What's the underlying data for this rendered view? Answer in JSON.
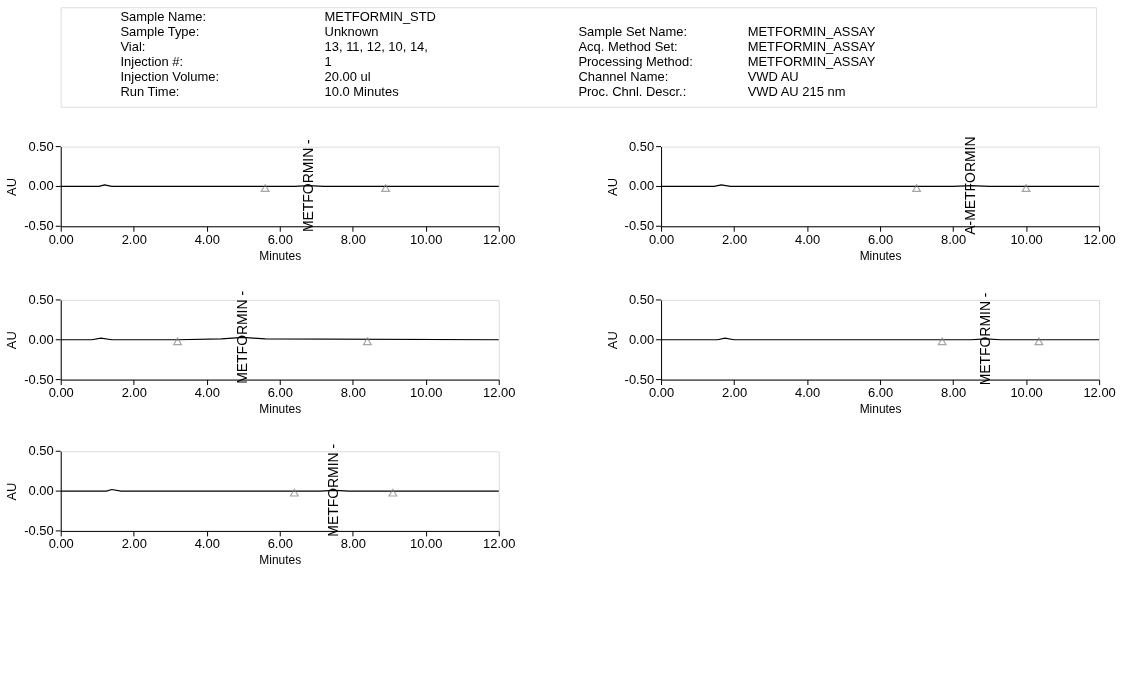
{
  "chart_data": [
    {
      "type": "other",
      "annotations": [
        "Sample Name:",
        "METFORMIN_STD",
        "Sample Type:",
        "Unknown",
        "Vial:",
        "13, 11, 12, 10, 14,",
        "Injection #:",
        "1",
        "Injection Volume:",
        "20.00 ul",
        "Run Time:",
        "10.0 Minutes",
        "Sample Set Name:",
        "METFORMIN_ASSAY",
        "Acq. Method Set:",
        "METFORMIN_ASSAY",
        "Processing Method:",
        "METFORMIN_ASSAY",
        "Channel Name:",
        "VWD AU",
        "Proc. Chnl. Descr.:",
        "VWD AU 215 nm"
      ]
    },
    {
      "type": "line",
      "xlabel": "Minutes",
      "ylabel": "AU",
      "xlim": [
        0,
        12
      ],
      "ylim": [
        -0.5,
        0.5
      ],
      "xticks": [
        {
          "value": 0,
          "label": "0.00"
        },
        {
          "value": 2,
          "label": "2.00"
        },
        {
          "value": 4,
          "label": "4.00"
        },
        {
          "value": 6,
          "label": "6.00"
        },
        {
          "value": 8,
          "label": "8.00"
        },
        {
          "value": 10,
          "label": "10.00"
        },
        {
          "value": 12,
          "label": "12.00"
        }
      ],
      "yticks": [
        {
          "value": -0.5,
          "label": "-0.50"
        },
        {
          "value": 0,
          "label": "0.00"
        },
        {
          "value": 0.5,
          "label": "0.50"
        }
      ],
      "series": [
        {
          "type": "line",
          "color": "#000000",
          "x": [
            0,
            1.05,
            1.2,
            1.4,
            5.6,
            6.4,
            6.8,
            7.2,
            12
          ],
          "values": [
            0,
            0,
            0.02,
            0,
            0,
            0,
            0.01,
            0,
            0
          ]
        },
        {
          "type": "scatter",
          "marker": "triangle",
          "color": "#808080",
          "x": [
            5.6,
            8.9
          ],
          "values": [
            -0.02,
            -0.02
          ]
        }
      ],
      "annotations": [
        {
          "text": "METFORMIN - ",
          "x": 6.8,
          "y": 0.01
        }
      ]
    },
    {
      "type": "line",
      "xlabel": "Minutes",
      "ylabel": "AU",
      "xlim": [
        0,
        12
      ],
      "ylim": [
        -0.5,
        0.5
      ],
      "xticks": [
        {
          "value": 0,
          "label": "0.00"
        },
        {
          "value": 2,
          "label": "2.00"
        },
        {
          "value": 4,
          "label": "4.00"
        },
        {
          "value": 6,
          "label": "6.00"
        },
        {
          "value": 8,
          "label": "8.00"
        },
        {
          "value": 10,
          "label": "10.00"
        },
        {
          "value": 12,
          "label": "12.00"
        }
      ],
      "yticks": [
        {
          "value": -0.5,
          "label": "-0.50"
        },
        {
          "value": 0,
          "label": "0.00"
        },
        {
          "value": 0.5,
          "label": "0.50"
        }
      ],
      "series": [
        {
          "type": "line",
          "color": "#000000",
          "x": [
            0,
            1.45,
            1.65,
            1.9,
            7.0,
            8.0,
            8.5,
            9.0,
            12
          ],
          "values": [
            0,
            0,
            0.02,
            0,
            0,
            0,
            0.01,
            0,
            0
          ]
        },
        {
          "type": "scatter",
          "marker": "triangle",
          "color": "#808080",
          "x": [
            7.0,
            10.0
          ],
          "values": [
            -0.02,
            -0.02
          ]
        }
      ],
      "annotations": [
        {
          "text": "A-METFORMIN",
          "x": 8.5,
          "y": 0.01
        }
      ]
    },
    {
      "type": "line",
      "xlabel": "Minutes",
      "ylabel": "AU",
      "xlim": [
        0,
        12
      ],
      "ylim": [
        -0.5,
        0.5
      ],
      "xticks": [
        {
          "value": 0,
          "label": "0.00"
        },
        {
          "value": 2,
          "label": "2.00"
        },
        {
          "value": 4,
          "label": "4.00"
        },
        {
          "value": 6,
          "label": "6.00"
        },
        {
          "value": 8,
          "label": "8.00"
        },
        {
          "value": 10,
          "label": "10.00"
        },
        {
          "value": 12,
          "label": "12.00"
        }
      ],
      "yticks": [
        {
          "value": -0.5,
          "label": "-0.50"
        },
        {
          "value": 0,
          "label": "0.00"
        },
        {
          "value": 0.5,
          "label": "0.50"
        }
      ],
      "series": [
        {
          "type": "line",
          "color": "#000000",
          "x": [
            0,
            0.85,
            1.1,
            1.4,
            3.2,
            4.4,
            5.0,
            5.6,
            12
          ],
          "values": [
            0,
            0,
            0.02,
            0,
            0,
            0.01,
            0.03,
            0.01,
            0
          ]
        },
        {
          "type": "scatter",
          "marker": "triangle",
          "color": "#808080",
          "x": [
            3.2,
            8.4
          ],
          "values": [
            -0.02,
            -0.02
          ]
        }
      ],
      "annotations": [
        {
          "text": "METFORMIN - ",
          "x": 5.0,
          "y": 0.03
        }
      ]
    },
    {
      "type": "line",
      "xlabel": "Minutes",
      "ylabel": "AU",
      "xlim": [
        0,
        12
      ],
      "ylim": [
        -0.5,
        0.5
      ],
      "xticks": [
        {
          "value": 0,
          "label": "0.00"
        },
        {
          "value": 2,
          "label": "2.00"
        },
        {
          "value": 4,
          "label": "4.00"
        },
        {
          "value": 6,
          "label": "6.00"
        },
        {
          "value": 8,
          "label": "8.00"
        },
        {
          "value": 10,
          "label": "10.00"
        },
        {
          "value": 12,
          "label": "12.00"
        }
      ],
      "yticks": [
        {
          "value": -0.5,
          "label": "-0.50"
        },
        {
          "value": 0,
          "label": "0.00"
        },
        {
          "value": 0.5,
          "label": "0.50"
        }
      ],
      "series": [
        {
          "type": "line",
          "color": "#000000",
          "x": [
            0,
            1.55,
            1.75,
            2.0,
            7.7,
            8.5,
            8.9,
            9.3,
            12
          ],
          "values": [
            0,
            0,
            0.02,
            0,
            0,
            0,
            0.01,
            0,
            0
          ]
        },
        {
          "type": "scatter",
          "marker": "triangle",
          "color": "#808080",
          "x": [
            7.7,
            10.35
          ],
          "values": [
            -0.02,
            -0.02
          ]
        }
      ],
      "annotations": [
        {
          "text": "METFORMIN - ",
          "x": 8.9,
          "y": 0.01
        }
      ]
    },
    {
      "type": "line",
      "xlabel": "Minutes",
      "ylabel": "AU",
      "xlim": [
        0,
        12
      ],
      "ylim": [
        -0.5,
        0.5
      ],
      "xticks": [
        {
          "value": 0,
          "label": "0.00"
        },
        {
          "value": 2,
          "label": "2.00"
        },
        {
          "value": 4,
          "label": "4.00"
        },
        {
          "value": 6,
          "label": "6.00"
        },
        {
          "value": 8,
          "label": "8.00"
        },
        {
          "value": 10,
          "label": "10.00"
        },
        {
          "value": 12,
          "label": "12.00"
        }
      ],
      "yticks": [
        {
          "value": -0.5,
          "label": "-0.50"
        },
        {
          "value": 0,
          "label": "0.00"
        },
        {
          "value": 0.5,
          "label": "0.50"
        }
      ],
      "series": [
        {
          "type": "line",
          "color": "#000000",
          "x": [
            0,
            1.25,
            1.4,
            1.65,
            6.4,
            7.1,
            7.5,
            7.9,
            12
          ],
          "values": [
            0,
            0,
            0.02,
            0,
            0,
            0,
            0.01,
            0,
            0
          ]
        },
        {
          "type": "scatter",
          "marker": "triangle",
          "color": "#808080",
          "x": [
            6.4,
            9.1
          ],
          "values": [
            -0.02,
            -0.02
          ]
        }
      ],
      "annotations": [
        {
          "text": "METFORMIN - ",
          "x": 7.5,
          "y": 0.01
        }
      ]
    }
  ]
}
